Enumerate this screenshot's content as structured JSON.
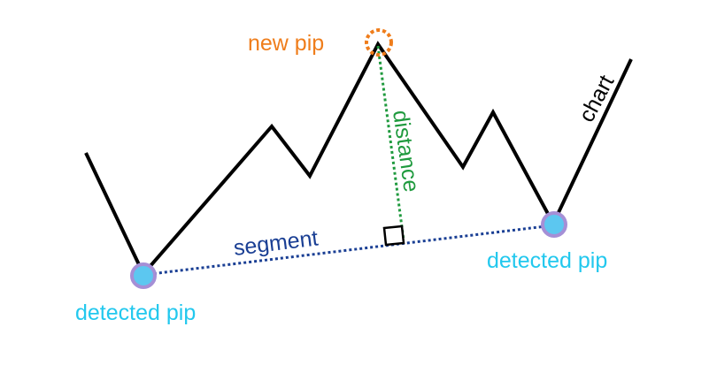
{
  "labels": {
    "new_pip": "new pip",
    "chart": "chart",
    "distance": "distance",
    "segment": "segment",
    "detected_pip_left": "detected pip",
    "detected_pip_right": "detected pip"
  },
  "colors": {
    "chart_line": "#000000",
    "new_pip": "#ef7d1b",
    "distance": "#1f9a3e",
    "segment": "#1a3f94",
    "detected_pip_text": "#22c8ee",
    "pip_fill": "#5cc7f0",
    "pip_ring": "#a58fd6",
    "right_angle_marker": "#000000"
  }
}
